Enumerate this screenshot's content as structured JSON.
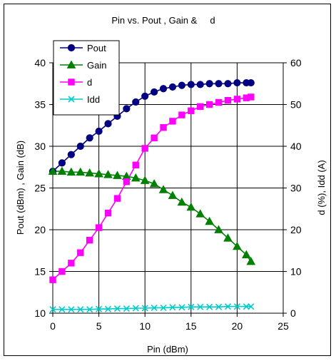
{
  "chart_data": {
    "type": "line",
    "title": "Pin vs. Pout , Gain &     d",
    "xlabel": "Pin (dBm)",
    "ylabel_left": "Pout (dBm) , Gain (dB)",
    "ylabel_right": "d (%), Idd (A)",
    "xlim": [
      0,
      25
    ],
    "ylim_left": [
      10,
      40
    ],
    "ylim_right": [
      0,
      60
    ],
    "x_ticks": [
      "0",
      "5",
      "10",
      "15",
      "20",
      "25"
    ],
    "y_left_ticks": [
      "10",
      "15",
      "20",
      "25",
      "30",
      "35",
      "40"
    ],
    "y_right_ticks": [
      "0",
      "10",
      "20",
      "30",
      "40",
      "50",
      "60"
    ],
    "grid": true,
    "legend_placement": "top-left",
    "x": [
      0,
      1,
      2,
      3,
      4,
      5,
      6,
      7,
      8,
      9,
      10,
      11,
      12,
      13,
      14,
      15,
      16,
      17,
      18,
      19,
      20,
      21,
      21.5
    ],
    "series": [
      {
        "name": "Pout",
        "axis": "left",
        "color": "#000080",
        "marker": "circle",
        "values": [
          27.0,
          28.0,
          29.0,
          30.0,
          31.0,
          31.8,
          32.7,
          33.6,
          34.5,
          35.3,
          36.0,
          36.5,
          36.9,
          37.1,
          37.3,
          37.4,
          37.4,
          37.5,
          37.5,
          37.5,
          37.6,
          37.6,
          37.6
        ]
      },
      {
        "name": "Gain",
        "axis": "left",
        "color": "#008000",
        "marker": "triangle",
        "values": [
          27.0,
          27.0,
          26.9,
          26.9,
          26.8,
          26.7,
          26.6,
          26.5,
          26.4,
          26.2,
          25.9,
          25.5,
          24.8,
          24.1,
          23.3,
          22.7,
          21.9,
          21.0,
          20.0,
          19.0,
          18.0,
          17.0,
          16.2
        ]
      },
      {
        "name": "d",
        "axis": "right",
        "color": "#FF00FF",
        "marker": "square",
        "values": [
          8,
          10,
          12,
          14.5,
          17.5,
          20.5,
          24,
          27.5,
          31.5,
          35.5,
          39.5,
          42,
          44.5,
          46,
          47.5,
          48.5,
          49.5,
          50,
          50.5,
          51,
          51.3,
          51.6,
          51.8
        ]
      },
      {
        "name": "Idd",
        "axis": "right",
        "color": "#00CCCC",
        "marker": "x",
        "values": [
          0.9,
          0.9,
          0.9,
          0.9,
          0.9,
          1.0,
          1.0,
          1.1,
          1.1,
          1.2,
          1.2,
          1.3,
          1.3,
          1.4,
          1.4,
          1.5,
          1.5,
          1.5,
          1.5,
          1.6,
          1.6,
          1.6,
          1.6
        ]
      }
    ]
  }
}
